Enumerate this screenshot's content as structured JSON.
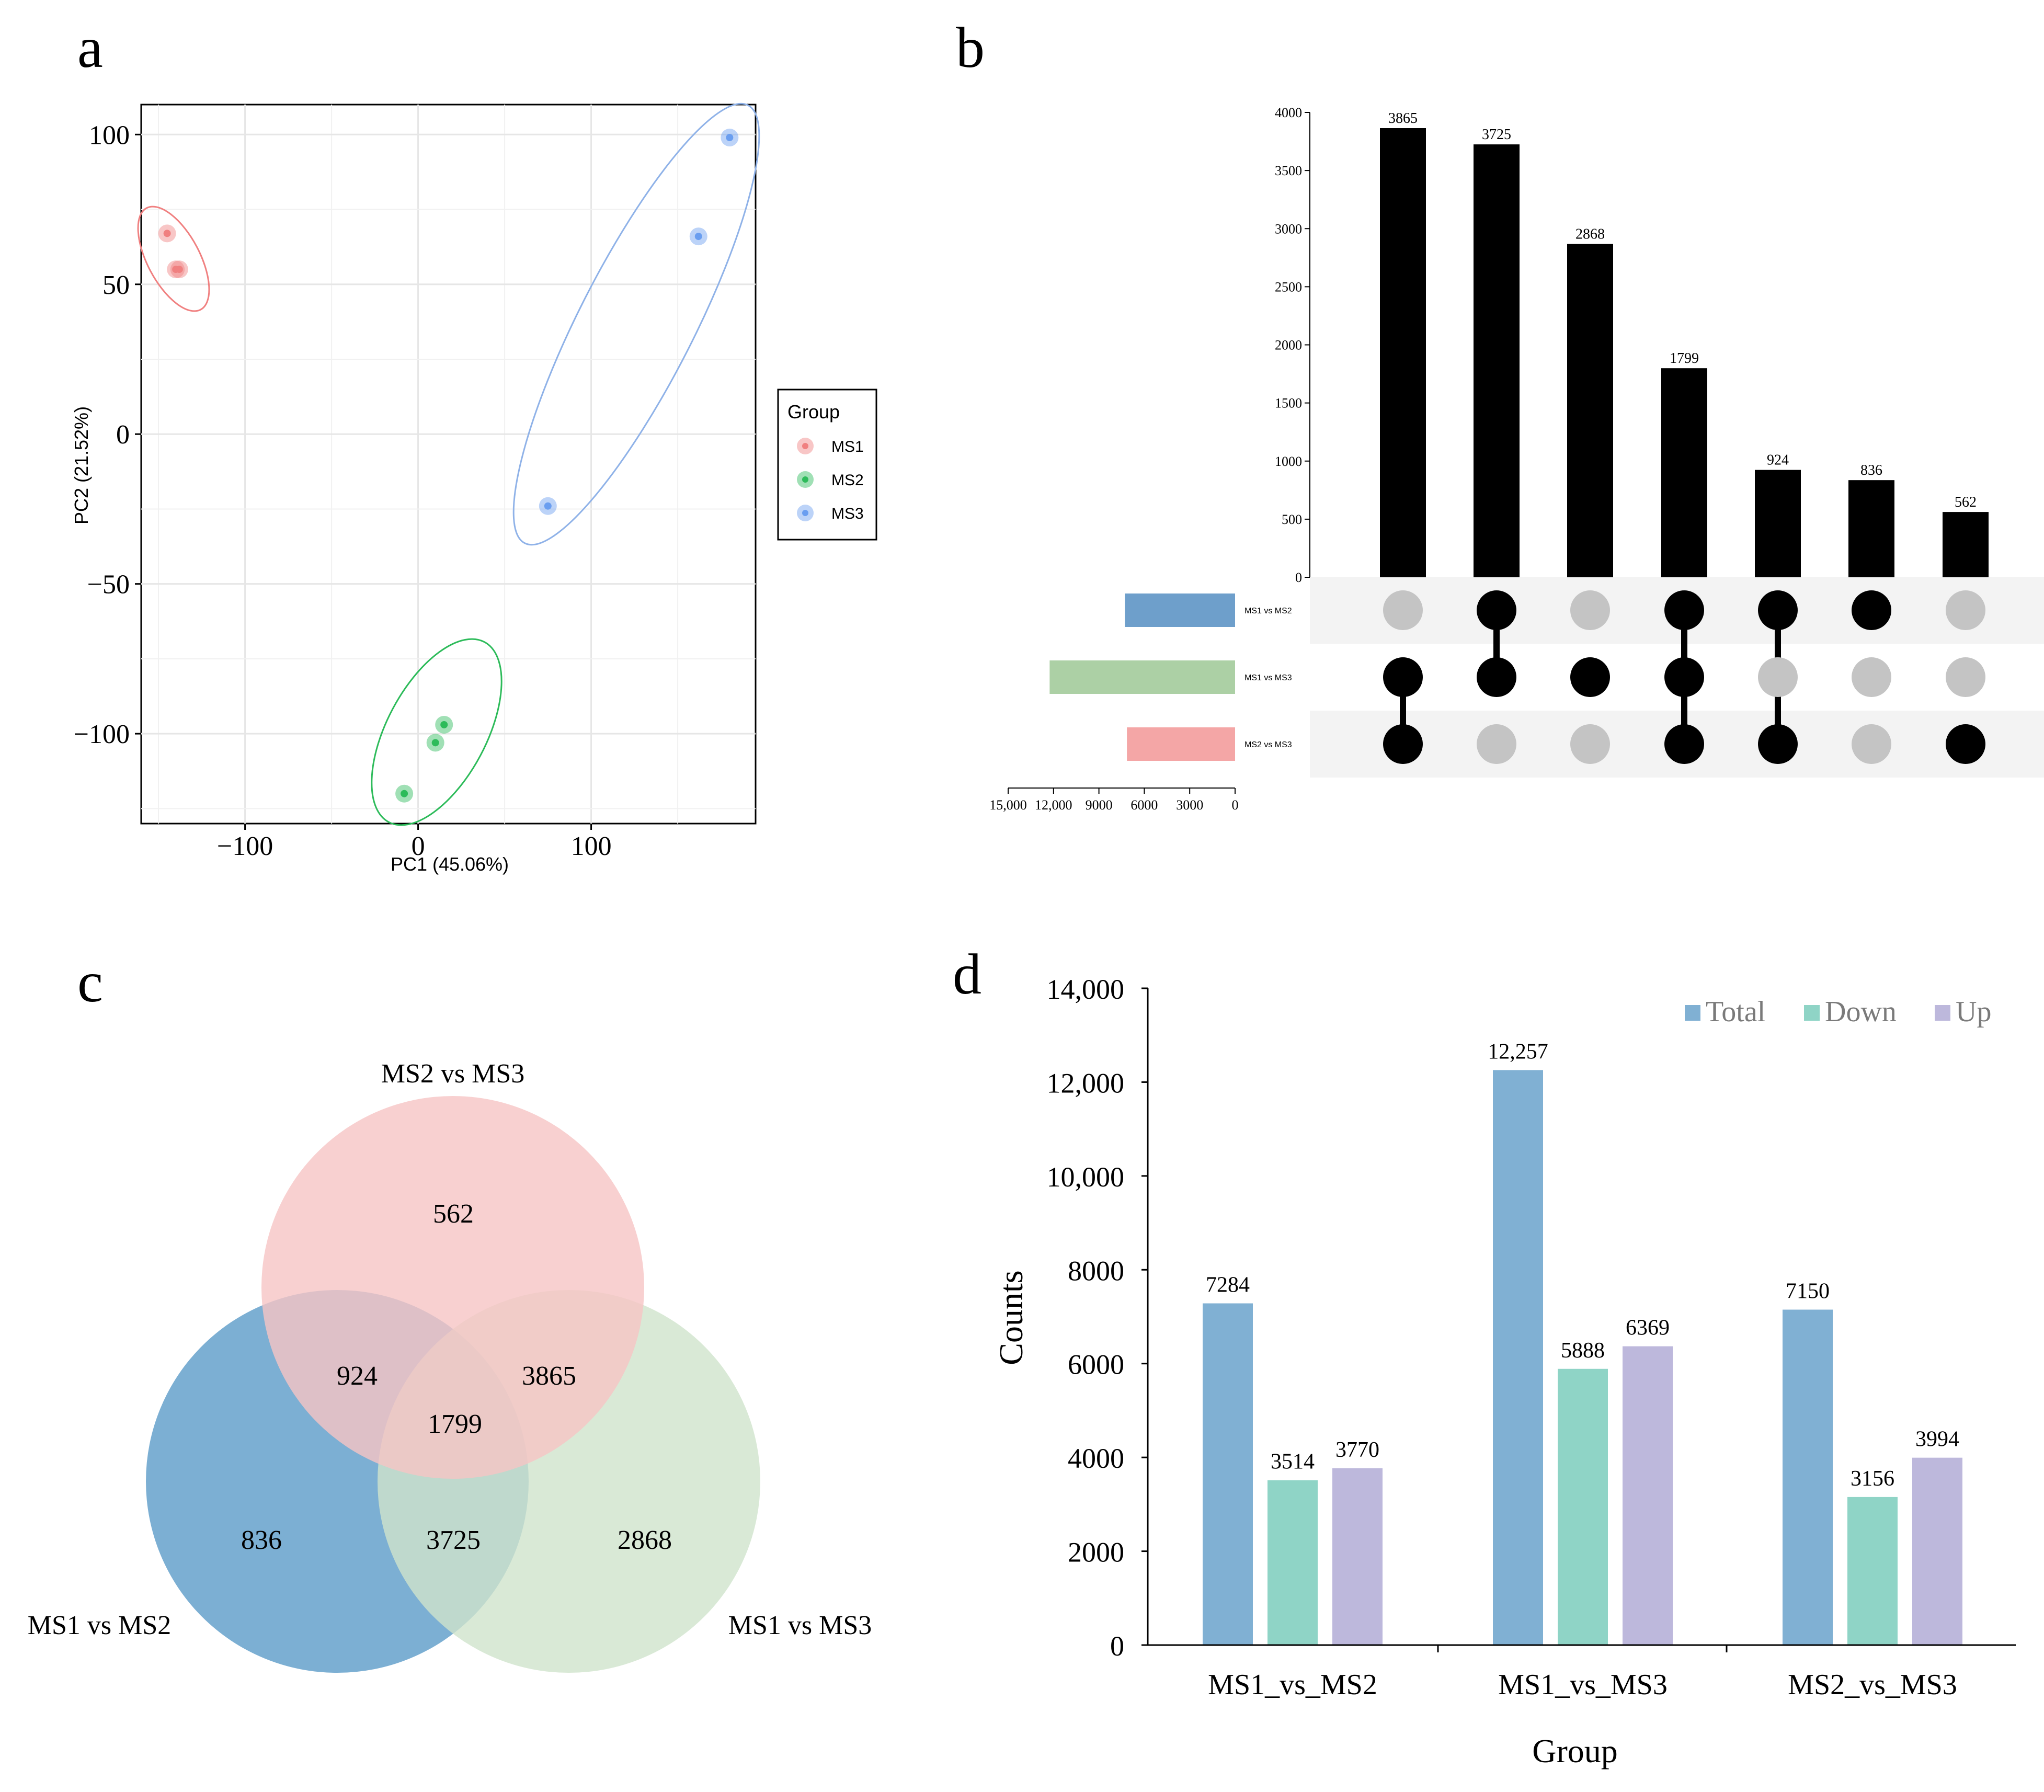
{
  "panels": {
    "a": "a",
    "b": "b",
    "c": "c",
    "d": "d"
  },
  "chart_data": [
    {
      "id": "a",
      "type": "scatter",
      "title": "",
      "xlabel": "PC1 (45.06%)",
      "ylabel": "PC2 (21.52%)",
      "xlim": [
        -160,
        195
      ],
      "ylim": [
        -130,
        110
      ],
      "xticks": [
        -100,
        0,
        100
      ],
      "xtick_labels": [
        "−100",
        "0",
        "100"
      ],
      "yticks": [
        -100,
        -50,
        0,
        50,
        100
      ],
      "ytick_labels": [
        "−100",
        "−50",
        "0",
        "50",
        "100"
      ],
      "legend_title": "Group",
      "legend_position": "right",
      "series": [
        {
          "name": "MS1",
          "color": "#f08080",
          "points": [
            [
              -145,
              67
            ],
            [
              -140,
              55
            ],
            [
              -138,
              55
            ]
          ]
        },
        {
          "name": "MS2",
          "color": "#2dbb5a",
          "points": [
            [
              -8,
              -120
            ],
            [
              10,
              -103
            ],
            [
              15,
              -97
            ]
          ]
        },
        {
          "name": "MS3",
          "color": "#6a9ef0",
          "points": [
            [
              75,
              -24
            ],
            [
              162,
              66
            ],
            [
              180,
              99
            ]
          ]
        }
      ]
    },
    {
      "id": "b",
      "type": "bar",
      "subtype": "upset",
      "ylim": [
        0,
        4000
      ],
      "yticks": [
        0,
        500,
        1000,
        1500,
        2000,
        2500,
        3000,
        3500,
        4000
      ],
      "ytick_labels": [
        "0",
        "500",
        "1000",
        "1500",
        "2000",
        "2500",
        "3000",
        "3500",
        "4000"
      ],
      "values": [
        3865,
        3725,
        2868,
        1799,
        924,
        836,
        562
      ],
      "value_labels": [
        "3865",
        "3725",
        "2868",
        "1799",
        "924",
        "836",
        "562"
      ],
      "sets": [
        {
          "name": "MS1 vs MS2",
          "size": 7284,
          "color": "#6e9fcb"
        },
        {
          "name": "MS1 vs MS3",
          "size": 12257,
          "color": "#acd0a5"
        },
        {
          "name": "MS2 vs MS3",
          "size": 7150,
          "color": "#f4a6a6"
        }
      ],
      "membership": [
        [
          0,
          1,
          1
        ],
        [
          1,
          1,
          0
        ],
        [
          0,
          1,
          0
        ],
        [
          1,
          1,
          1
        ],
        [
          1,
          0,
          1
        ],
        [
          1,
          0,
          0
        ],
        [
          0,
          0,
          1
        ]
      ],
      "set_size_xlim": [
        0,
        15000
      ],
      "set_size_ticks": [
        15000,
        12000,
        9000,
        6000,
        3000,
        0
      ],
      "set_size_tick_labels": [
        "15,000",
        "12,000",
        "9000",
        "6000",
        "3000",
        "0"
      ]
    },
    {
      "id": "c",
      "type": "venn",
      "sets": [
        {
          "name": "MS1 vs MS2",
          "label": "MS1 vs MS2",
          "color": "#5b9bc8"
        },
        {
          "name": "MS1 vs MS3",
          "label": "MS1 vs MS3",
          "color": "#cfe3cc"
        },
        {
          "name": "MS2 vs MS3",
          "label": "MS2 vs MS3",
          "color": "#f6c4c4"
        }
      ],
      "regions": [
        {
          "sets": [
            "MS2 vs MS3"
          ],
          "value": "562"
        },
        {
          "sets": [
            "MS1 vs MS2",
            "MS2 vs MS3"
          ],
          "value": "924"
        },
        {
          "sets": [
            "MS1 vs MS3",
            "MS2 vs MS3"
          ],
          "value": "3865"
        },
        {
          "sets": [
            "MS1 vs MS2",
            "MS1 vs MS3",
            "MS2 vs MS3"
          ],
          "value": "1799"
        },
        {
          "sets": [
            "MS1 vs MS2"
          ],
          "value": "836"
        },
        {
          "sets": [
            "MS1 vs MS2",
            "MS1 vs MS3"
          ],
          "value": "3725"
        },
        {
          "sets": [
            "MS1 vs MS3"
          ],
          "value": "2868"
        }
      ]
    },
    {
      "id": "d",
      "type": "bar",
      "xlabel": "Group",
      "ylabel": "Counts",
      "ylim": [
        0,
        14000
      ],
      "yticks": [
        0,
        2000,
        4000,
        6000,
        8000,
        10000,
        12000,
        14000
      ],
      "ytick_labels": [
        "0",
        "2000",
        "4000",
        "6000",
        "8000",
        "10,000",
        "12,000",
        "14,000"
      ],
      "categories": [
        "MS1_vs_MS2",
        "MS1_vs_MS3",
        "MS2_vs_MS3"
      ],
      "legend_position": "top-right",
      "series": [
        {
          "name": "Total",
          "color": "#80b0d3",
          "values": [
            7284,
            12257,
            7150
          ],
          "labels": [
            "7284",
            "12,257",
            "7150"
          ]
        },
        {
          "name": "Down",
          "color": "#8fd4c6",
          "values": [
            3514,
            5888,
            3156
          ],
          "labels": [
            "3514",
            "5888",
            "3156"
          ]
        },
        {
          "name": "Up",
          "color": "#bdb8dc",
          "values": [
            3770,
            6369,
            3994
          ],
          "labels": [
            "3770",
            "6369",
            "3994"
          ]
        }
      ]
    }
  ]
}
